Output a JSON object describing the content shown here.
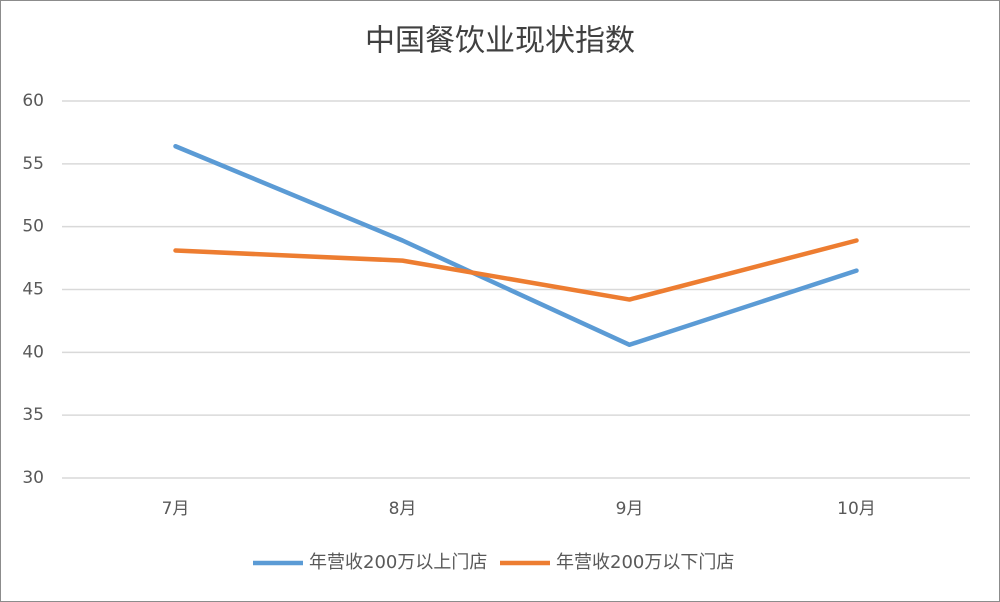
{
  "chart_data": {
    "type": "line",
    "title": "中国餐饮业现状指数",
    "categories": [
      "7月",
      "8月",
      "9月",
      "10月"
    ],
    "series": [
      {
        "name": "年营收200万以上门店",
        "color": "#5b9bd5",
        "values": [
          56.4,
          48.9,
          40.6,
          46.5
        ]
      },
      {
        "name": "年营收200万以下门店",
        "color": "#ed7d31",
        "values": [
          48.1,
          47.3,
          44.2,
          48.9
        ]
      }
    ],
    "ylim": [
      30,
      60
    ],
    "yticks": [
      30,
      35,
      40,
      45,
      50,
      55,
      60
    ],
    "grid": true,
    "legend": "bottom"
  }
}
